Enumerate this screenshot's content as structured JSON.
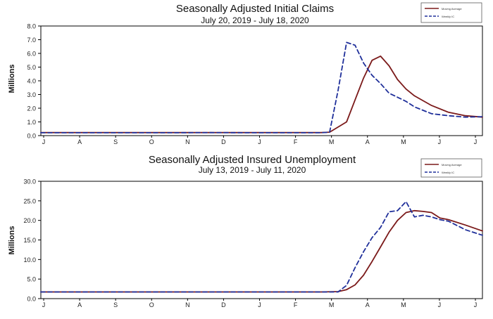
{
  "chart_data": [
    {
      "type": "line",
      "title": "Seasonally Adjusted Initial Claims",
      "subtitle": "July 20, 2019 - July 18, 2020",
      "ylabel": "Millions",
      "ylim": [
        0,
        8
      ],
      "yticks": [
        "0.0",
        "1.0",
        "2.0",
        "3.0",
        "4.0",
        "5.0",
        "6.0",
        "7.0",
        "8.0"
      ],
      "xticks": [
        "J",
        "A",
        "S",
        "O",
        "N",
        "D",
        "J",
        "F",
        "M",
        "A",
        "M",
        "J",
        "J"
      ],
      "x_range": [
        0,
        52
      ],
      "grid": false,
      "legend_position": "top-right",
      "series": [
        {
          "name": "Moving Average",
          "color": "#7b1a1a",
          "dash": "solid",
          "x": [
            0,
            5,
            10,
            15,
            20,
            25,
            30,
            33,
            34,
            36,
            37,
            38,
            39,
            40,
            41,
            42,
            43,
            44,
            46,
            48,
            50,
            52
          ],
          "y": [
            0.22,
            0.22,
            0.22,
            0.22,
            0.22,
            0.22,
            0.22,
            0.22,
            0.25,
            1.0,
            2.6,
            4.2,
            5.5,
            5.8,
            5.1,
            4.1,
            3.4,
            2.9,
            2.2,
            1.7,
            1.45,
            1.35
          ]
        },
        {
          "name": "Weekly IC",
          "color": "#1f2f9a",
          "dash": "dashed",
          "x": [
            0,
            5,
            10,
            15,
            20,
            25,
            30,
            33,
            34,
            35,
            36,
            37,
            38,
            39,
            40,
            41,
            42,
            43,
            44,
            46,
            48,
            50,
            52
          ],
          "y": [
            0.21,
            0.21,
            0.21,
            0.21,
            0.22,
            0.21,
            0.21,
            0.21,
            0.25,
            3.3,
            6.8,
            6.6,
            5.3,
            4.4,
            3.8,
            3.1,
            2.8,
            2.5,
            2.1,
            1.6,
            1.45,
            1.35,
            1.38
          ]
        }
      ]
    },
    {
      "type": "line",
      "title": "Seasonally Adjusted Insured Unemployment",
      "subtitle": "July 13, 2019 - July 11, 2020",
      "ylabel": "Millions",
      "ylim": [
        0,
        30
      ],
      "yticks": [
        "0.0",
        "5.0",
        "10.0",
        "15.0",
        "20.0",
        "25.0",
        "30.0"
      ],
      "xticks": [
        "J",
        "A",
        "S",
        "O",
        "N",
        "D",
        "J",
        "F",
        "M",
        "A",
        "M",
        "J",
        "J"
      ],
      "x_range": [
        0,
        52
      ],
      "grid": false,
      "legend_position": "top-right",
      "series": [
        {
          "name": "Moving Average",
          "color": "#7b1a1a",
          "dash": "solid",
          "x": [
            0,
            5,
            10,
            15,
            20,
            25,
            30,
            33,
            35,
            36,
            37,
            38,
            39,
            40,
            41,
            42,
            43,
            44,
            45,
            46,
            47,
            48,
            50,
            52
          ],
          "y": [
            1.7,
            1.7,
            1.7,
            1.7,
            1.7,
            1.7,
            1.7,
            1.7,
            1.8,
            2.3,
            3.5,
            6.0,
            9.5,
            13.2,
            17.0,
            20.0,
            22.0,
            22.5,
            22.3,
            22.0,
            20.6,
            20.2,
            18.8,
            17.3
          ]
        },
        {
          "name": "Weekly IC",
          "color": "#1f2f9a",
          "dash": "dashed",
          "x": [
            0,
            5,
            10,
            15,
            20,
            25,
            30,
            33,
            35,
            36,
            37,
            38,
            39,
            40,
            41,
            42,
            43,
            44,
            45,
            46,
            47,
            48,
            50,
            52
          ],
          "y": [
            1.7,
            1.7,
            1.7,
            1.7,
            1.7,
            1.7,
            1.7,
            1.7,
            1.7,
            3.4,
            7.9,
            12.0,
            15.6,
            18.2,
            22.2,
            22.5,
            24.8,
            20.9,
            21.3,
            20.9,
            20.2,
            19.8,
            17.6,
            16.2
          ]
        }
      ]
    }
  ]
}
